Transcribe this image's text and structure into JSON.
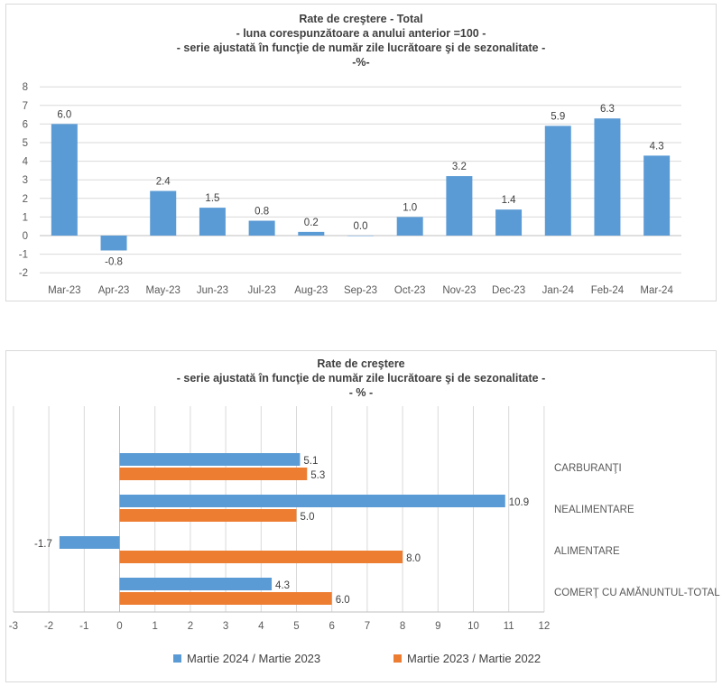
{
  "chart1": {
    "title_lines": [
      "Rate de creştere - Total",
      "- luna corespunzătoare a anului anterior =100 -",
      "- serie ajustată în funcţie de număr zile lucrătoare şi de sezonalitate -",
      "-%-"
    ]
  },
  "chart2": {
    "title_lines": [
      "Rate de creştere",
      "- serie ajustată în funcţie de număr zile lucrătoare şi de sezonalitate -",
      "- % -"
    ],
    "legend": [
      "Martie 2024 / Martie 2023",
      "Martie 2023 / Martie 2022"
    ]
  },
  "colors": {
    "blue": "#5b9bd5",
    "orange": "#ed7d31",
    "grid": "#d9d9d9"
  },
  "chart_data": [
    {
      "type": "bar",
      "categories": [
        "Mar-23",
        "Apr-23",
        "May-23",
        "Jun-23",
        "Jul-23",
        "Aug-23",
        "Sep-23",
        "Oct-23",
        "Nov-23",
        "Dec-23",
        "Jan-24",
        "Feb-24",
        "Mar-24"
      ],
      "values": [
        6.0,
        -0.8,
        2.4,
        1.5,
        0.8,
        0.2,
        0.0,
        1.0,
        3.2,
        1.4,
        5.9,
        6.3,
        4.3
      ],
      "labels": [
        "6.0",
        "-0.8",
        "2.4",
        "1.5",
        "0.8",
        "0.2",
        "0.0",
        "1.0",
        "3.2",
        "1.4",
        "5.9",
        "6.3",
        "4.3"
      ],
      "yticks": [
        "8",
        "7",
        "6",
        "5",
        "4",
        "3",
        "2",
        "1",
        "0",
        "-1",
        "-2"
      ],
      "ylim": [
        -2,
        8
      ],
      "grid": true
    },
    {
      "type": "bar",
      "orientation": "horizontal",
      "categories": [
        "CARBURANŢI",
        "NEALIMENTARE",
        "ALIMENTARE",
        "COMERŢ CU AMĂNUNTUL-TOTAL"
      ],
      "series": [
        {
          "name": "Martie 2024 / Martie 2023",
          "values": [
            5.1,
            10.9,
            -1.7,
            4.3
          ],
          "labels": [
            "5.1",
            "10.9",
            "-1.7",
            "4.3"
          ]
        },
        {
          "name": "Martie 2023 / Martie 2022",
          "values": [
            5.3,
            5.0,
            8.0,
            6.0
          ],
          "labels": [
            "5.3",
            "5.0",
            "8.0",
            "6.0"
          ]
        }
      ],
      "xticks": [
        "-3",
        "-2",
        "-1",
        "0",
        "1",
        "2",
        "3",
        "4",
        "5",
        "6",
        "7",
        "8",
        "9",
        "10",
        "11",
        "12"
      ],
      "xlim": [
        -3,
        12
      ],
      "grid": true,
      "legend_position": "bottom"
    }
  ]
}
